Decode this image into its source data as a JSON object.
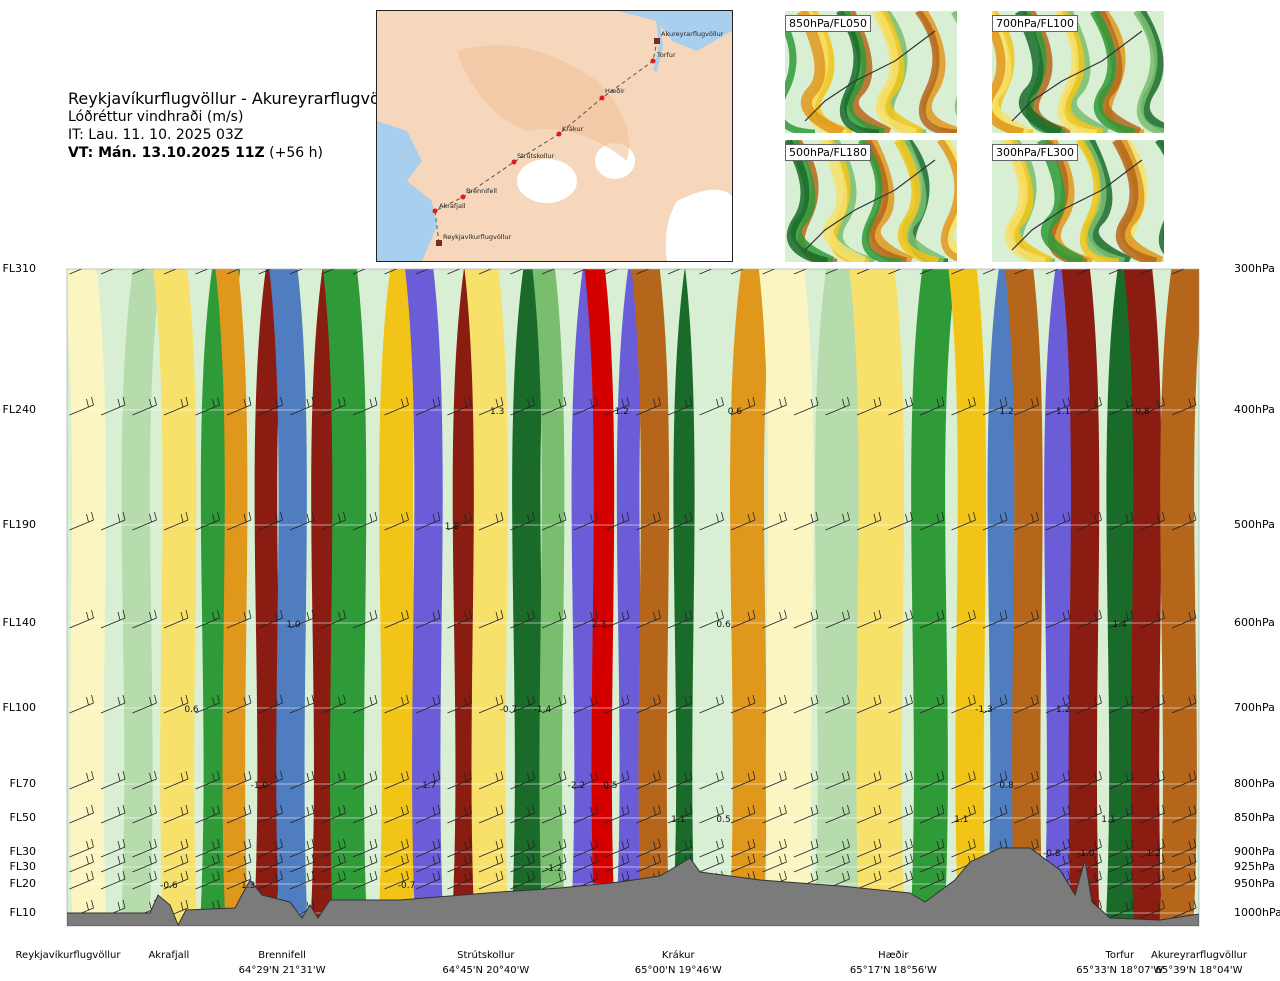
{
  "header": {
    "route_title": "Reykjavíkurflugvöllur - Akureyrarflugvöllur",
    "parameter": "Lóðréttur vindhraði (m/s)",
    "issue_time": "IT: Lau. 11. 10. 2025 03Z",
    "valid_time_bold": "VT: Mán. 13.10.2025 11Z",
    "valid_time_offset": " (+56 h)"
  },
  "route_map": {
    "colors": {
      "sea": "#a9cfee",
      "land": "#f6d7bb",
      "highland": "#f0c199",
      "glacier": "#ffffff",
      "route": "#555555",
      "point": "#e31a1c"
    },
    "points": [
      {
        "name": "Akureyrarflugvöllur",
        "kind": "airport"
      },
      {
        "name": "Torfur",
        "kind": "waypoint"
      },
      {
        "name": "Hæðir",
        "kind": "waypoint"
      },
      {
        "name": "Krákur",
        "kind": "waypoint"
      },
      {
        "name": "Strútskollur",
        "kind": "waypoint"
      },
      {
        "name": "Brennifell",
        "kind": "waypoint"
      },
      {
        "name": "Akrafjall",
        "kind": "waypoint"
      },
      {
        "name": "Reykjavíkurflugvöllur",
        "kind": "airport"
      }
    ]
  },
  "thumbnails": [
    {
      "label": "850hPa/FL050"
    },
    {
      "label": "700hPa/FL100"
    },
    {
      "label": "500hPa/FL180"
    },
    {
      "label": "300hPa/FL300"
    }
  ],
  "chart_data": {
    "type": "heatmap",
    "title": "Lóðréttur vindhraði (m/s)",
    "unit": "m/s",
    "levels": [
      {
        "fl": "FL310",
        "hpa": "300hPa"
      },
      {
        "fl": "FL240",
        "hpa": "400hPa"
      },
      {
        "fl": "FL190",
        "hpa": "500hPa"
      },
      {
        "fl": "FL140",
        "hpa": "600hPa"
      },
      {
        "fl": "FL100",
        "hpa": "700hPa"
      },
      {
        "fl": "FL70",
        "hpa": "800hPa"
      },
      {
        "fl": "FL50",
        "hpa": "850hPa"
      },
      {
        "fl": "FL30",
        "hpa": "900hPa"
      },
      {
        "fl": "FL30",
        "hpa": "925hPa"
      },
      {
        "fl": "FL20",
        "hpa": "950hPa"
      },
      {
        "fl": "FL10",
        "hpa": "1000hPa"
      }
    ],
    "hpa_values": [
      300,
      400,
      500,
      600,
      700,
      800,
      850,
      900,
      925,
      950,
      1000
    ],
    "waypoints": [
      {
        "name": "Reykjavíkurflugvöllur",
        "coords": ""
      },
      {
        "name": "Akrafjall",
        "coords": ""
      },
      {
        "name": "Brennifell",
        "coords": "64°29'N 21°31'W"
      },
      {
        "name": "Strútskollur",
        "coords": "64°45'N 20°40'W"
      },
      {
        "name": "Krákur",
        "coords": "65°00'N 19°46'W"
      },
      {
        "name": "Hæðir",
        "coords": "65°17'N 18°56'W"
      },
      {
        "name": "Torfur",
        "coords": "65°33'N 18°07'W"
      },
      {
        "name": "Akureyrarflugvöllur",
        "coords": "65°39'N 18°04'W"
      }
    ],
    "waypoint_distance_fraction": [
      0.0,
      0.09,
      0.19,
      0.37,
      0.54,
      0.73,
      0.93,
      1.0
    ],
    "color_scale": [
      "#6b5cd8",
      "#4f7dbf",
      "#1a6b2a",
      "#2f9a38",
      "#79bd6f",
      "#b6dcae",
      "#d8efd4",
      "#fbf6c1",
      "#f7e16b",
      "#f2c418",
      "#e0981c",
      "#b5661a",
      "#8a1c12",
      "#d40000"
    ],
    "value_labels": [
      {
        "text": "1.3",
        "pos": 0.38,
        "hpa": 400
      },
      {
        "text": "1.2",
        "pos": 0.49,
        "hpa": 400
      },
      {
        "text": "0.6",
        "pos": 0.59,
        "hpa": 400
      },
      {
        "text": "1.2",
        "pos": 0.83,
        "hpa": 400
      },
      {
        "text": "1.1",
        "pos": 0.88,
        "hpa": 400
      },
      {
        "text": "0.8",
        "pos": 0.95,
        "hpa": 400
      },
      {
        "text": "1.8",
        "pos": 0.34,
        "hpa": 500
      },
      {
        "text": "1.0",
        "pos": 0.2,
        "hpa": 600
      },
      {
        "text": "2.3",
        "pos": 0.47,
        "hpa": 600
      },
      {
        "text": "0.6",
        "pos": 0.58,
        "hpa": 600
      },
      {
        "text": "1.4",
        "pos": 0.93,
        "hpa": 600
      },
      {
        "text": "0.6",
        "pos": 0.11,
        "hpa": 700
      },
      {
        "text": "-0.7",
        "pos": 0.39,
        "hpa": 700
      },
      {
        "text": "-1.4",
        "pos": 0.42,
        "hpa": 700
      },
      {
        "text": "-1.3",
        "pos": 0.81,
        "hpa": 700
      },
      {
        "text": "1.2",
        "pos": 0.88,
        "hpa": 700
      },
      {
        "text": "-1.0",
        "pos": 0.17,
        "hpa": 800
      },
      {
        "text": "1.7",
        "pos": 0.32,
        "hpa": 800
      },
      {
        "text": "-2.2",
        "pos": 0.45,
        "hpa": 800
      },
      {
        "text": "0.5",
        "pos": 0.48,
        "hpa": 800
      },
      {
        "text": "0.8",
        "pos": 0.83,
        "hpa": 800
      },
      {
        "text": "1.1",
        "pos": 0.54,
        "hpa": 850
      },
      {
        "text": "0.5",
        "pos": 0.58,
        "hpa": 850
      },
      {
        "text": "1.1",
        "pos": 0.79,
        "hpa": 850
      },
      {
        "text": "1.1",
        "pos": 0.92,
        "hpa": 850
      },
      {
        "text": "-0.8",
        "pos": 0.87,
        "hpa": 900
      },
      {
        "text": "-1.0",
        "pos": 0.9,
        "hpa": 900
      },
      {
        "text": "1.2",
        "pos": 0.96,
        "hpa": 900
      },
      {
        "text": "-1.2",
        "pos": 0.43,
        "hpa": 925
      },
      {
        "text": "-0.6",
        "pos": 0.09,
        "hpa": 950
      },
      {
        "text": "1.3",
        "pos": 0.16,
        "hpa": 950
      },
      {
        "text": "-0.7",
        "pos": 0.3,
        "hpa": 950
      }
    ]
  }
}
